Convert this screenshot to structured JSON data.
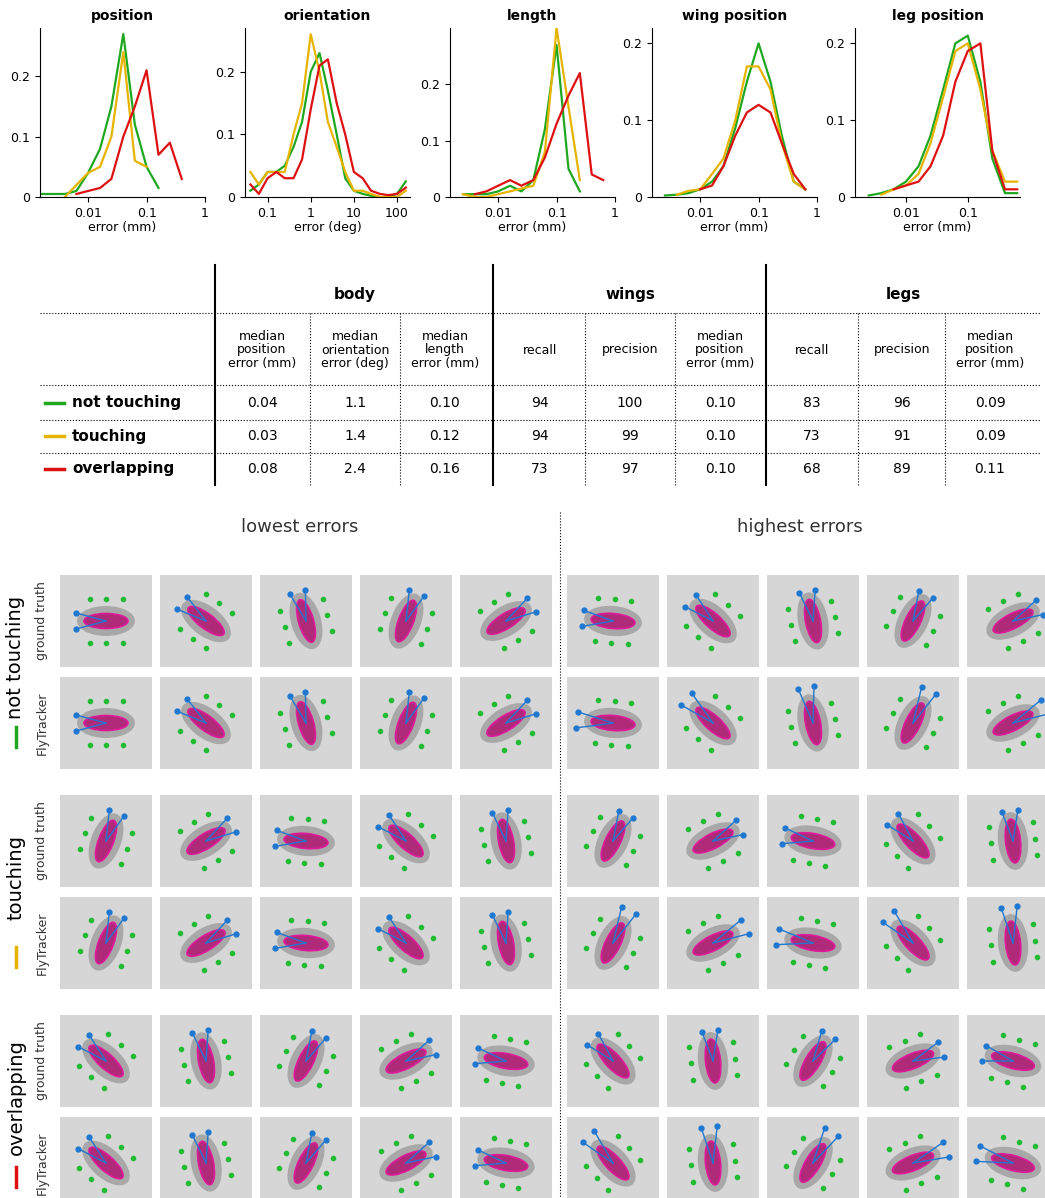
{
  "chart_data": [
    {
      "type": "line",
      "title": "position",
      "xlabel": "error (mm)",
      "log": "x",
      "x": [
        0.0015,
        0.0025,
        0.004,
        0.0063,
        0.01,
        0.016,
        0.025,
        0.04,
        0.063,
        0.1,
        0.16,
        0.25,
        0.4
      ],
      "xlim": [
        0.0015,
        1
      ],
      "ylim": [
        0,
        0.28
      ],
      "xticks": [
        0.01,
        0.1,
        1
      ],
      "yticks": [
        0,
        0.1,
        0.2
      ],
      "series": [
        {
          "color": "#1fa81f",
          "values": [
            0.005,
            0.005,
            0.005,
            0.01,
            0.04,
            0.08,
            0.15,
            0.27,
            0.12,
            0.05,
            0.015,
            null,
            null
          ]
        },
        {
          "color": "#e6b400",
          "values": [
            null,
            null,
            0.0,
            0.02,
            0.04,
            0.05,
            0.1,
            0.24,
            0.06,
            0.05,
            null,
            null,
            null
          ]
        },
        {
          "color": "#dd1111",
          "values": [
            null,
            null,
            null,
            0.005,
            0.01,
            0.015,
            0.03,
            0.1,
            0.15,
            0.21,
            0.07,
            0.09,
            0.03
          ]
        }
      ]
    },
    {
      "type": "line",
      "title": "orientation",
      "xlabel": "error (deg)",
      "log": "x",
      "x": [
        0.04,
        0.063,
        0.1,
        0.16,
        0.25,
        0.4,
        0.63,
        1,
        1.6,
        2.5,
        4,
        6.3,
        10,
        16,
        25,
        40,
        63,
        100,
        160
      ],
      "xlim": [
        0.03,
        200
      ],
      "ylim": [
        0,
        0.27
      ],
      "xticks": [
        0.1,
        1,
        10,
        100
      ],
      "yticks": [
        0,
        0.1,
        0.2
      ],
      "series": [
        {
          "color": "#1fa81f",
          "values": [
            0.01,
            0.02,
            0.04,
            0.04,
            0.05,
            0.08,
            0.12,
            0.2,
            0.23,
            0.17,
            0.1,
            0.03,
            0.01,
            0.005,
            0.002,
            0,
            0,
            0.005,
            0.025
          ]
        },
        {
          "color": "#e6b400",
          "values": [
            0.04,
            0.02,
            0.04,
            0.04,
            0.04,
            0.1,
            0.15,
            0.26,
            0.2,
            0.12,
            0.08,
            0.04,
            0.01,
            0.01,
            0.005,
            0,
            0,
            0,
            0.01
          ]
        },
        {
          "color": "#dd1111",
          "values": [
            0.02,
            0.005,
            0.03,
            0.04,
            0.03,
            0.03,
            0.06,
            0.14,
            0.21,
            0.22,
            0.15,
            0.1,
            0.04,
            0.03,
            0.01,
            0.005,
            0.003,
            0.005,
            0.015
          ]
        }
      ]
    },
    {
      "type": "line",
      "title": "length",
      "xlabel": "error (mm)",
      "log": "x",
      "x": [
        0.0025,
        0.004,
        0.0063,
        0.01,
        0.016,
        0.025,
        0.04,
        0.063,
        0.1,
        0.16,
        0.25,
        0.4,
        0.63
      ],
      "xlim": [
        0.0015,
        1
      ],
      "ylim": [
        0,
        0.3
      ],
      "xticks": [
        0.01,
        0.1,
        1
      ],
      "yticks": [
        0,
        0.1,
        0.2
      ],
      "series": [
        {
          "color": "#1fa81f",
          "values": [
            0.005,
            0.005,
            0.005,
            0.01,
            0.02,
            0.01,
            0.03,
            0.12,
            0.27,
            0.05,
            0.01,
            null,
            null
          ]
        },
        {
          "color": "#e6b400",
          "values": [
            0.005,
            0.0,
            0.0,
            0.005,
            0.01,
            0.015,
            0.02,
            0.08,
            0.3,
            0.16,
            0.03,
            null,
            null
          ]
        },
        {
          "color": "#dd1111",
          "values": [
            null,
            0.005,
            0.01,
            0.02,
            0.03,
            0.02,
            0.03,
            0.07,
            0.13,
            0.18,
            0.22,
            0.04,
            0.03
          ]
        }
      ]
    },
    {
      "type": "line",
      "title": "wing position",
      "xlabel": "error (mm)",
      "log": "x",
      "x": [
        0.0025,
        0.004,
        0.0063,
        0.01,
        0.016,
        0.025,
        0.04,
        0.063,
        0.1,
        0.16,
        0.25,
        0.4,
        0.63
      ],
      "xlim": [
        0.0015,
        1
      ],
      "ylim": [
        0,
        0.22
      ],
      "xticks": [
        0.01,
        0.1,
        1
      ],
      "yticks": [
        0,
        0.1,
        0.2
      ],
      "series": [
        {
          "color": "#1fa81f",
          "values": [
            0.002,
            0.003,
            0.005,
            0.01,
            0.02,
            0.04,
            0.09,
            0.15,
            0.2,
            0.15,
            0.08,
            0.02,
            0.01
          ]
        },
        {
          "color": "#e6b400",
          "values": [
            null,
            0.003,
            0.008,
            0.01,
            0.03,
            0.05,
            0.1,
            0.17,
            0.17,
            0.14,
            0.07,
            0.02,
            0.01
          ]
        },
        {
          "color": "#dd1111",
          "values": [
            null,
            null,
            null,
            0.01,
            0.015,
            0.04,
            0.08,
            0.11,
            0.12,
            0.11,
            0.07,
            0.03,
            0.01
          ]
        }
      ]
    },
    {
      "type": "line",
      "title": "leg position",
      "xlabel": "error (mm)",
      "log": "x",
      "x": [
        0.0025,
        0.004,
        0.0063,
        0.01,
        0.016,
        0.025,
        0.04,
        0.063,
        0.1,
        0.16,
        0.25,
        0.4,
        0.63
      ],
      "xlim": [
        0.0015,
        0.7
      ],
      "ylim": [
        0,
        0.22
      ],
      "xticks": [
        0.01,
        0.1
      ],
      "yticks": [
        0,
        0.1,
        0.2
      ],
      "series": [
        {
          "color": "#1fa81f",
          "values": [
            0.002,
            0.005,
            0.01,
            0.02,
            0.04,
            0.08,
            0.14,
            0.2,
            0.21,
            0.15,
            0.05,
            0.005,
            0.005
          ]
        },
        {
          "color": "#e6b400",
          "values": [
            null,
            0.003,
            0.01,
            0.015,
            0.03,
            0.07,
            0.13,
            0.19,
            0.2,
            0.14,
            0.06,
            0.02,
            0.02
          ]
        },
        {
          "color": "#dd1111",
          "values": [
            null,
            null,
            0.01,
            0.015,
            0.02,
            0.04,
            0.08,
            0.15,
            0.19,
            0.2,
            0.06,
            0.01,
            0.01
          ]
        }
      ]
    }
  ],
  "table": {
    "groups": [
      "body",
      "wings",
      "legs"
    ],
    "columns": [
      [
        "median\nposition\nerror (mm)",
        "median\norientation\nerror (deg)",
        "median\nlength\nerror (mm)"
      ],
      [
        "recall",
        "precision",
        "median\nposition\nerror (mm)"
      ],
      [
        "recall",
        "precision",
        "median\nposition\nerror (mm)"
      ]
    ],
    "rows": [
      {
        "label": "not touching",
        "color": "#1fa81f",
        "cells": [
          "0.04",
          "1.1",
          "0.10",
          "94",
          "100",
          "0.10",
          "83",
          "96",
          "0.09"
        ]
      },
      {
        "label": "touching",
        "color": "#e6b400",
        "cells": [
          "0.03",
          "1.4",
          "0.12",
          "94",
          "99",
          "0.10",
          "73",
          "91",
          "0.09"
        ]
      },
      {
        "label": "overlapping",
        "color": "#dd1111",
        "cells": [
          "0.08",
          "2.4",
          "0.16",
          "73",
          "97",
          "0.10",
          "68",
          "89",
          "0.11"
        ]
      }
    ]
  },
  "image_grid": {
    "column_headers": [
      "lowest errors",
      "highest errors"
    ],
    "row_labels": [
      "ground truth",
      "FlyTracker"
    ],
    "groups": [
      {
        "label": "not touching",
        "color": "#1fa81f"
      },
      {
        "label": "touching",
        "color": "#e6b400"
      },
      {
        "label": "overlapping",
        "color": "#dd1111"
      }
    ]
  }
}
